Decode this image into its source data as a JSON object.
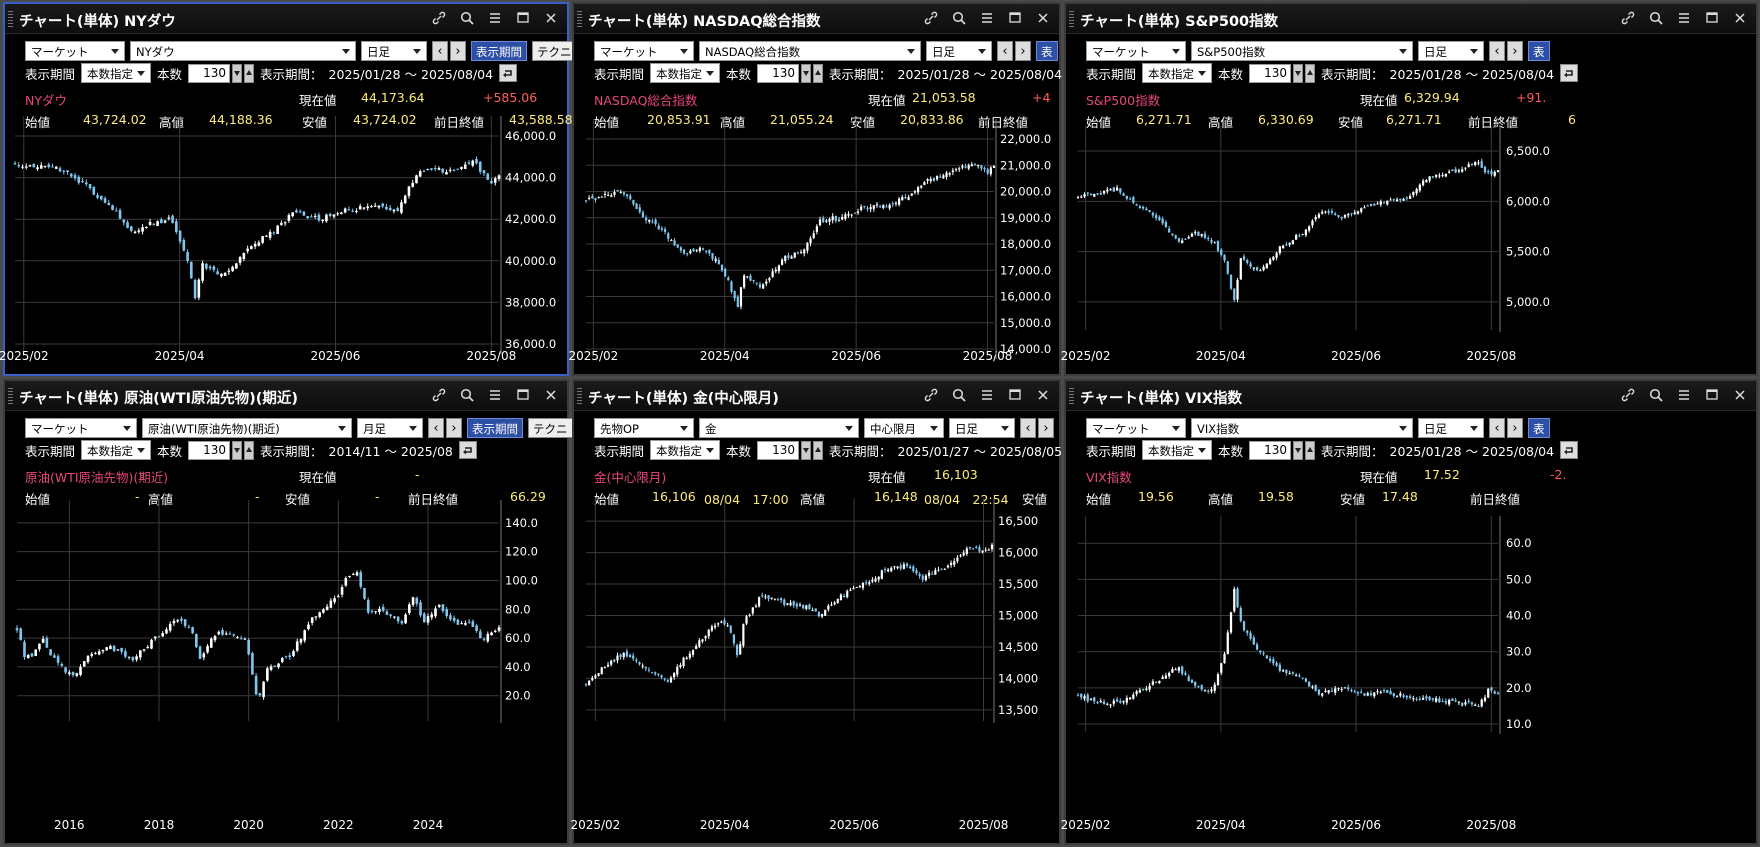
{
  "colors": {
    "candle_up": "#ffffff",
    "candle_down": "#7ec8f0",
    "gridline": "#3a3a3a",
    "axis_text": "#ffffff",
    "instrument_name": "#e8467a",
    "value_text": "#ffeb7a",
    "change_text": "#ff5b5b",
    "period_button": "#2e4fa6",
    "active_border": "#3a5fc8"
  },
  "window_buttons": [
    "link-icon",
    "search-icon",
    "menu-icon",
    "maximize-icon",
    "close-icon"
  ],
  "panels": [
    {
      "title": "チャート(単体) NYダウ",
      "controls": {
        "market": "マーケット",
        "instrument": "NYダウ",
        "interval": "日足",
        "prev": "‹",
        "next": "›",
        "period_button": "表示期間",
        "tech_button": "テクニ"
      },
      "row2": {
        "period_label": "表示期間",
        "mode": "本数指定",
        "count_label": "本数",
        "count": "130",
        "range_label": "表示期間：",
        "range": "2025/01/28 ～ 2025/08/04"
      },
      "quote": {
        "name": "NYダウ",
        "current_label": "現在値",
        "current": "44,173.64",
        "change": "+585.06",
        "open_label": "始値",
        "open": "43,724.02",
        "high_label": "高値",
        "high": "44,188.36",
        "low_label": "安値",
        "low": "43,724.02",
        "prev_label": "前日終値",
        "prev": "43,588.58"
      }
    },
    {
      "title": "チャート(単体) NASDAQ総合指数",
      "controls": {
        "market": "マーケット",
        "instrument": "NASDAQ総合指数",
        "interval": "日足",
        "prev": "‹",
        "next": "›",
        "period_button": "表"
      },
      "row2": {
        "period_label": "表示期間",
        "mode": "本数指定",
        "count_label": "本数",
        "count": "130",
        "range_label": "表示期間：",
        "range": "2025/01/28 ～ 2025/08/04"
      },
      "quote": {
        "name": "NASDAQ総合指数",
        "current_label": "現在値",
        "current": "21,053.58",
        "change": "+4",
        "open_label": "始値",
        "open": "20,853.91",
        "high_label": "高値",
        "high": "21,055.24",
        "low_label": "安値",
        "low": "20,833.86",
        "prev_label": "前日終値"
      }
    },
    {
      "title": "チャート(単体) S&P500指数",
      "controls": {
        "market": "マーケット",
        "instrument": "S&P500指数",
        "interval": "日足",
        "prev": "‹",
        "next": "›",
        "period_button": "表"
      },
      "row2": {
        "period_label": "表示期間",
        "mode": "本数指定",
        "count_label": "本数",
        "count": "130",
        "range_label": "表示期間：",
        "range": "2025/01/28 ～ 2025/08/04"
      },
      "quote": {
        "name": "S&P500指数",
        "current_label": "現在値",
        "current": "6,329.94",
        "change": "+91.",
        "open_label": "始値",
        "open": "6,271.71",
        "high_label": "高値",
        "high": "6,330.69",
        "low_label": "安値",
        "low": "6,271.71",
        "prev_label": "前日終値",
        "prev": "6"
      }
    },
    {
      "title": "チャート(単体) 原油(WTI原油先物)(期近)",
      "controls": {
        "market": "マーケット",
        "instrument": "原油(WTI原油先物)(期近)",
        "interval": "月足",
        "prev": "‹",
        "next": "›",
        "period_button": "表示期間",
        "tech_button": "テクニ"
      },
      "row2": {
        "period_label": "表示期間",
        "mode": "本数指定",
        "count_label": "本数",
        "count": "130",
        "range_label": "表示期間：",
        "range": "2014/11 ～ 2025/08"
      },
      "quote": {
        "name": "原油(WTI原油先物)(期近)",
        "current_label": "現在値",
        "current": "-",
        "open_label": "始値",
        "open": "-",
        "high_label": "高値",
        "high": "-",
        "low_label": "安値",
        "low": "-",
        "prev_label": "前日終値",
        "prev": "66.29"
      }
    },
    {
      "title": "チャート(単体) 金(中心限月)",
      "controls": {
        "market": "先物OP",
        "instrument": "金",
        "contract": "中心限月",
        "interval": "日足",
        "prev": "‹",
        "next": "›"
      },
      "row2": {
        "period_label": "表示期間",
        "mode": "本数指定",
        "count_label": "本数",
        "count": "130",
        "range_label": "表示期間：",
        "range": "2025/01/27 ～ 2025/08/05"
      },
      "quote": {
        "name": "金(中心限月)",
        "current_label": "現在値",
        "current": "16,103",
        "open_label": "始値",
        "open": "16,106",
        "open_time": "08/04　17:00",
        "high_label": "高値",
        "high": "16,148",
        "high_time": "08/04　22:54",
        "low_label": "安値"
      }
    },
    {
      "title": "チャート(単体) VIX指数",
      "controls": {
        "market": "マーケット",
        "instrument": "VIX指数",
        "interval": "日足",
        "prev": "‹",
        "next": "›",
        "period_button": "表"
      },
      "row2": {
        "period_label": "表示期間",
        "mode": "本数指定",
        "count_label": "本数",
        "count": "130",
        "range_label": "表示期間：",
        "range": "2025/01/28 ～ 2025/08/04"
      },
      "quote": {
        "name": "VIX指数",
        "current_label": "現在値",
        "current": "17.52",
        "change": "-2.",
        "open_label": "始値",
        "open": "19.56",
        "high_label": "高値",
        "high": "19.58",
        "low_label": "安値",
        "low": "17.48",
        "prev_label": "前日終値"
      }
    }
  ],
  "chart_data": [
    {
      "type": "candlestick",
      "x_ticks": [
        "2025/02",
        "2025/04",
        "2025/06",
        "2025/08"
      ],
      "y_ticks": [
        "46,000.0",
        "44,000.0",
        "42,000.0",
        "40,000.0",
        "38,000.0",
        "36,000.0"
      ],
      "ylim": [
        36000,
        46000
      ],
      "scale": "linear",
      "x": [
        "2025-01-28",
        "2025-02-05",
        "2025-02-15",
        "2025-02-25",
        "2025-03-05",
        "2025-03-12",
        "2025-03-20",
        "2025-03-28",
        "2025-04-03",
        "2025-04-07",
        "2025-04-10",
        "2025-04-18",
        "2025-04-28",
        "2025-05-08",
        "2025-05-15",
        "2025-05-25",
        "2025-06-05",
        "2025-06-15",
        "2025-06-25",
        "2025-07-03",
        "2025-07-15",
        "2025-07-25",
        "2025-07-31",
        "2025-08-04"
      ],
      "close": [
        44700,
        44500,
        44400,
        43600,
        42600,
        41300,
        41800,
        42000,
        40500,
        38300,
        39800,
        39200,
        40600,
        41500,
        42300,
        42000,
        42400,
        42600,
        42400,
        44400,
        44300,
        44800,
        43600,
        44170
      ]
    },
    {
      "type": "candlestick",
      "x_ticks": [
        "2025/02",
        "2025/04",
        "2025/06",
        "2025/08"
      ],
      "y_ticks": [
        "22,000.0",
        "21,000.0",
        "20,000.0",
        "19,000.0",
        "18,000.0",
        "17,000.0",
        "16,000.0",
        "15,000.0",
        "14,000.0"
      ],
      "ylim": [
        14000,
        22000
      ],
      "scale": "linear",
      "x": [
        "2025-01-28",
        "2025-02-05",
        "2025-02-15",
        "2025-02-25",
        "2025-03-05",
        "2025-03-12",
        "2025-03-20",
        "2025-03-28",
        "2025-04-03",
        "2025-04-07",
        "2025-04-10",
        "2025-04-18",
        "2025-04-28",
        "2025-05-08",
        "2025-05-15",
        "2025-05-25",
        "2025-06-05",
        "2025-06-15",
        "2025-06-25",
        "2025-07-03",
        "2025-07-15",
        "2025-07-25",
        "2025-07-31",
        "2025-08-04"
      ],
      "close": [
        19700,
        19800,
        20000,
        19000,
        18300,
        17600,
        17800,
        17400,
        16500,
        15600,
        16900,
        16300,
        17400,
        17900,
        18900,
        19000,
        19400,
        19500,
        19800,
        20400,
        20700,
        21100,
        20700,
        21050
      ]
    },
    {
      "type": "candlestick",
      "x_ticks": [
        "2025/02",
        "2025/04",
        "2025/06",
        "2025/08"
      ],
      "y_ticks": [
        "6,500.0",
        "6,000.0",
        "5,500.0",
        "5,000.0"
      ],
      "ylim": [
        4800,
        6550
      ],
      "scale": "linear",
      "x": [
        "2025-01-28",
        "2025-02-05",
        "2025-02-15",
        "2025-02-25",
        "2025-03-05",
        "2025-03-12",
        "2025-03-20",
        "2025-03-28",
        "2025-04-03",
        "2025-04-07",
        "2025-04-10",
        "2025-04-18",
        "2025-04-28",
        "2025-05-08",
        "2025-05-15",
        "2025-05-25",
        "2025-06-05",
        "2025-06-15",
        "2025-06-25",
        "2025-07-03",
        "2025-07-15",
        "2025-07-25",
        "2025-07-31",
        "2025-08-04"
      ],
      "close": [
        6050,
        6070,
        6120,
        5950,
        5800,
        5600,
        5680,
        5600,
        5400,
        5000,
        5450,
        5280,
        5550,
        5700,
        5900,
        5850,
        5950,
        6000,
        6050,
        6250,
        6300,
        6380,
        6250,
        6330
      ]
    },
    {
      "type": "candlestick",
      "x_ticks": [
        "2016",
        "2018",
        "2020",
        "2022",
        "2024"
      ],
      "y_ticks": [
        "140.0",
        "120.0",
        "100.0",
        "80.0",
        "60.0",
        "40.0",
        "20.0"
      ],
      "ylim": [
        8,
        142
      ],
      "scale": "linear",
      "x": [
        "2014-11",
        "2015-01",
        "2015-03",
        "2015-06",
        "2015-09",
        "2015-12",
        "2016-02",
        "2016-06",
        "2016-12",
        "2017-06",
        "2017-12",
        "2018-06",
        "2018-10",
        "2018-12",
        "2019-04",
        "2019-12",
        "2020-03",
        "2020-04",
        "2020-06",
        "2020-12",
        "2021-06",
        "2021-10",
        "2022-01",
        "2022-03",
        "2022-06",
        "2022-09",
        "2022-12",
        "2023-06",
        "2023-09",
        "2023-12",
        "2024-04",
        "2024-09",
        "2024-12",
        "2025-04",
        "2025-06",
        "2025-08"
      ],
      "close": [
        66,
        48,
        48,
        59,
        45,
        37,
        33,
        48,
        53,
        46,
        60,
        74,
        65,
        45,
        63,
        61,
        20,
        19,
        39,
        48,
        73,
        83,
        88,
        100,
        105,
        79,
        80,
        70,
        90,
        71,
        82,
        68,
        71,
        58,
        65,
        66
      ]
    },
    {
      "type": "candlestick",
      "x_ticks": [
        "2025/02",
        "2025/04",
        "2025/06",
        "2025/08"
      ],
      "y_ticks": [
        "16,500",
        "16,000",
        "15,500",
        "15,000",
        "14,500",
        "14,000",
        "13,500"
      ],
      "ylim": [
        13450,
        16550
      ],
      "scale": "linear",
      "x": [
        "2025-01-27",
        "2025-02-05",
        "2025-02-15",
        "2025-02-25",
        "2025-03-05",
        "2025-03-12",
        "2025-03-20",
        "2025-03-28",
        "2025-04-03",
        "2025-04-07",
        "2025-04-10",
        "2025-04-18",
        "2025-04-28",
        "2025-05-08",
        "2025-05-15",
        "2025-05-25",
        "2025-06-05",
        "2025-06-15",
        "2025-06-25",
        "2025-07-03",
        "2025-07-15",
        "2025-07-25",
        "2025-07-31",
        "2025-08-05"
      ],
      "close": [
        13900,
        14200,
        14400,
        14150,
        13950,
        14300,
        14600,
        14900,
        14800,
        14350,
        14900,
        15300,
        15200,
        15150,
        15000,
        15300,
        15500,
        15700,
        15800,
        15600,
        15800,
        16100,
        16000,
        16100
      ]
    },
    {
      "type": "candlestick",
      "x_ticks": [
        "2025/02",
        "2025/04",
        "2025/06",
        "2025/08"
      ],
      "y_ticks": [
        "60.0",
        "50.0",
        "40.0",
        "30.0",
        "20.0",
        "10.0"
      ],
      "ylim": [
        10,
        62
      ],
      "scale": "linear",
      "x": [
        "2025-01-28",
        "2025-02-05",
        "2025-02-15",
        "2025-02-25",
        "2025-03-05",
        "2025-03-12",
        "2025-03-20",
        "2025-03-28",
        "2025-04-03",
        "2025-04-07",
        "2025-04-10",
        "2025-04-18",
        "2025-04-28",
        "2025-05-08",
        "2025-05-15",
        "2025-05-25",
        "2025-06-05",
        "2025-06-15",
        "2025-06-25",
        "2025-07-03",
        "2025-07-15",
        "2025-07-25",
        "2025-07-31",
        "2025-08-04"
      ],
      "close": [
        18,
        16,
        16,
        19,
        23,
        26,
        20,
        19,
        30,
        47,
        38,
        30,
        25,
        22,
        18,
        20,
        18,
        19,
        17,
        17,
        16,
        15,
        20,
        18
      ]
    }
  ]
}
